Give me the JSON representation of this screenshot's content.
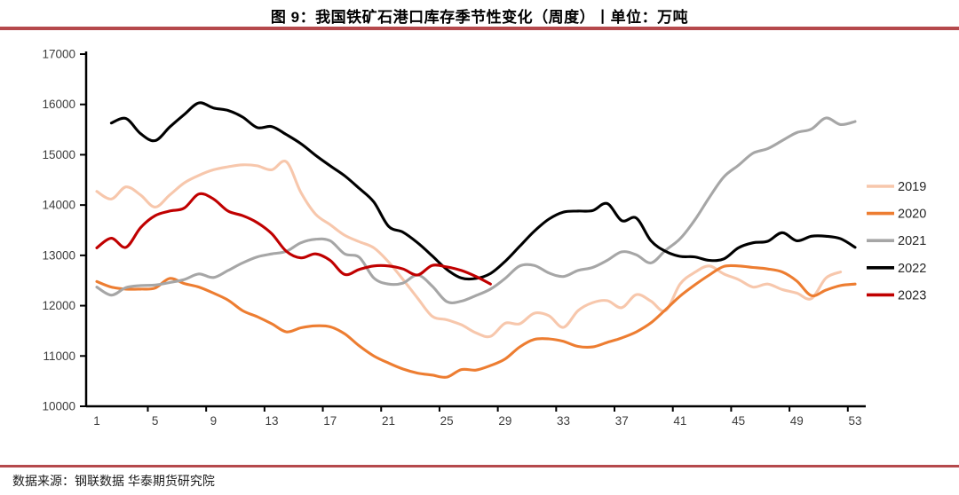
{
  "page": {
    "title": "图 9：我国铁矿石港口库存季节性变化（周度）丨单位：万吨",
    "source_note": "数据来源：钢联数据  华泰期货研究院"
  },
  "theme": {
    "separator_color": "#b5494c",
    "axis_color": "#000000",
    "tick_label_color": "#3d3d3d",
    "legend_text_color": "#262626",
    "background": "#ffffff"
  },
  "chart_data": {
    "type": "line",
    "title": "我国铁矿石港口库存季节性变化（周度）",
    "unit": "万吨",
    "xlabel": "",
    "ylabel": "",
    "grid": false,
    "legend_position": "right",
    "xlim": [
      1,
      53
    ],
    "ylim": [
      10000,
      17000
    ],
    "y_ticks": [
      10000,
      11000,
      12000,
      13000,
      14000,
      15000,
      16000,
      17000
    ],
    "x_ticks": [
      1,
      5,
      9,
      13,
      17,
      21,
      25,
      29,
      33,
      37,
      41,
      45,
      49,
      53
    ],
    "series": [
      {
        "name": "2019",
        "color": "#f7c7ac",
        "start_week": 1,
        "values": [
          14270,
          14120,
          14360,
          14200,
          13960,
          14200,
          14440,
          14590,
          14700,
          14760,
          14800,
          14780,
          14700,
          14860,
          14250,
          13820,
          13610,
          13400,
          13270,
          13150,
          12870,
          12520,
          12150,
          11790,
          11720,
          11620,
          11460,
          11390,
          11650,
          11640,
          11850,
          11800,
          11570,
          11900,
          12060,
          12100,
          11960,
          12220,
          12090,
          11900,
          12430,
          12660,
          12790,
          12630,
          12520,
          12370,
          12430,
          12320,
          12250,
          12140,
          12550,
          12670
        ]
      },
      {
        "name": "2020",
        "color": "#ed7d31",
        "start_week": 1,
        "values": [
          12480,
          12370,
          12330,
          12330,
          12350,
          12540,
          12440,
          12370,
          12250,
          12110,
          11900,
          11780,
          11640,
          11480,
          11560,
          11600,
          11580,
          11440,
          11200,
          11000,
          10860,
          10740,
          10660,
          10620,
          10580,
          10730,
          10720,
          10810,
          10940,
          11180,
          11330,
          11340,
          11290,
          11190,
          11180,
          11270,
          11360,
          11480,
          11660,
          11920,
          12190,
          12410,
          12610,
          12780,
          12790,
          12760,
          12730,
          12670,
          12490,
          12200,
          12310,
          12400,
          12430
        ]
      },
      {
        "name": "2021",
        "color": "#a6a6a6",
        "start_week": 1,
        "values": [
          12370,
          12210,
          12360,
          12400,
          12410,
          12460,
          12520,
          12630,
          12560,
          12700,
          12850,
          12970,
          13030,
          13080,
          13250,
          13320,
          13290,
          13030,
          12960,
          12550,
          12430,
          12450,
          12610,
          12390,
          12080,
          12090,
          12200,
          12330,
          12540,
          12790,
          12800,
          12650,
          12580,
          12700,
          12760,
          12900,
          13070,
          13010,
          12850,
          13100,
          13330,
          13700,
          14150,
          14560,
          14790,
          15030,
          15120,
          15280,
          15440,
          15510,
          15730,
          15600,
          15660
        ]
      },
      {
        "name": "2022",
        "color": "#000000",
        "start_week": 2,
        "values": [
          15630,
          15720,
          15420,
          15280,
          15550,
          15800,
          16030,
          15930,
          15880,
          15750,
          15540,
          15560,
          15400,
          15220,
          14990,
          14780,
          14580,
          14330,
          14060,
          13580,
          13460,
          13250,
          12990,
          12720,
          12550,
          12540,
          12640,
          12880,
          13180,
          13480,
          13720,
          13860,
          13880,
          13890,
          14030,
          13690,
          13740,
          13290,
          13080,
          12980,
          12970,
          12900,
          12930,
          13150,
          13250,
          13280,
          13450,
          13290,
          13380,
          13380,
          13330,
          13160
        ]
      },
      {
        "name": "2023",
        "color": "#c00000",
        "start_week": 1,
        "values": [
          13150,
          13340,
          13160,
          13550,
          13790,
          13880,
          13940,
          14220,
          14120,
          13880,
          13790,
          13650,
          13430,
          13080,
          12950,
          13030,
          12900,
          12620,
          12720,
          12790,
          12790,
          12730,
          12610,
          12800,
          12770,
          12700,
          12580,
          12430
        ]
      }
    ]
  }
}
